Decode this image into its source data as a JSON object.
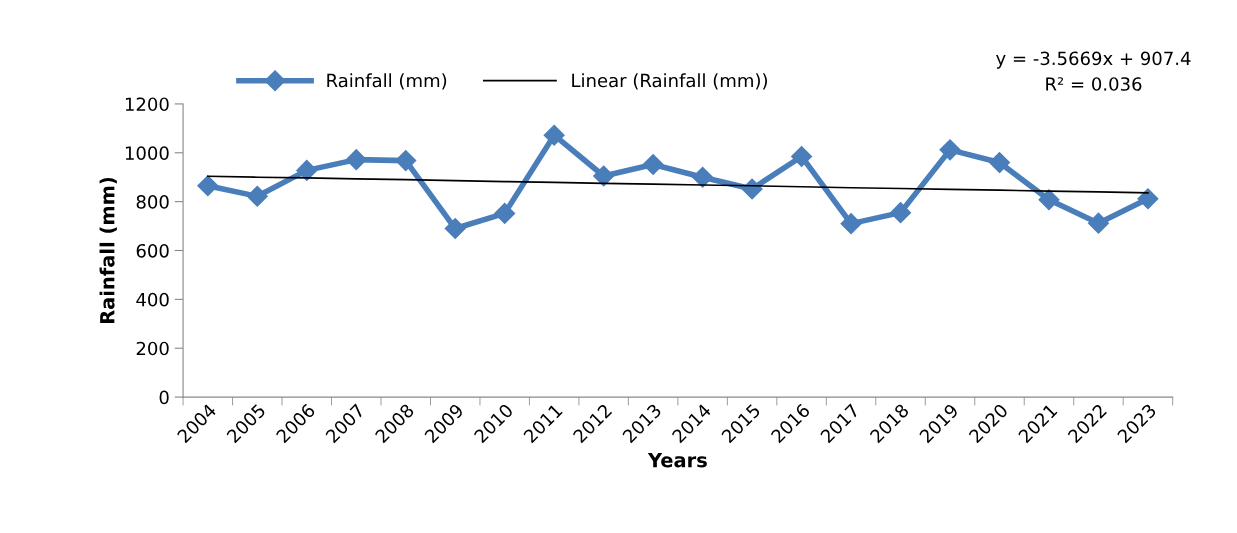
{
  "chart_data": {
    "type": "line",
    "xlabel": "Years",
    "ylabel": "Rainfall (mm)",
    "categories": [
      "2004",
      "2005",
      "2006",
      "2007",
      "2008",
      "2009",
      "2010",
      "2011",
      "2012",
      "2013",
      "2014",
      "2015",
      "2016",
      "2017",
      "2018",
      "2019",
      "2020",
      "2021",
      "2022",
      "2023"
    ],
    "series": [
      {
        "name": "Rainfall (mm)",
        "color": "#4a7ebb",
        "marker": "diamond",
        "values": [
          865,
          822,
          928,
          972,
          968,
          690,
          752,
          1072,
          905,
          952,
          900,
          852,
          985,
          710,
          755,
          1012,
          960,
          808,
          712,
          812
        ]
      },
      {
        "name": "Linear (Rainfall (mm))",
        "color": "#000000",
        "marker": "none",
        "values": [
          904,
          900,
          897,
          893,
          890,
          886,
          882,
          879,
          875,
          872,
          868,
          865,
          861,
          857,
          854,
          850,
          847,
          843,
          840,
          836
        ]
      }
    ],
    "ylim": [
      0,
      1200
    ],
    "yticks": [
      0,
      200,
      400,
      600,
      800,
      1000,
      1200
    ],
    "grid": false,
    "legend": "top",
    "annotations": [
      "y = -3.5669x + 907.4\nR² = 0.036"
    ]
  }
}
